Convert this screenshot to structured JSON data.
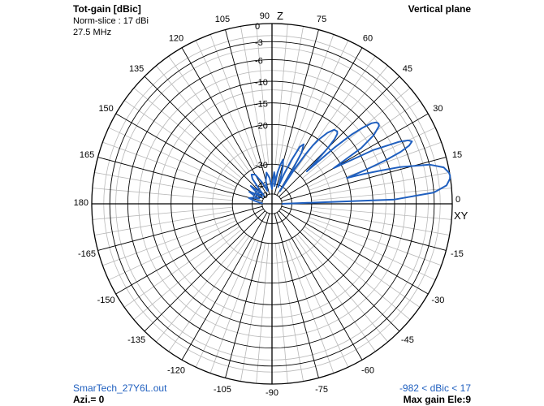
{
  "header": {
    "title": "Tot-gain [dBic]",
    "norm_slice": "Norm-slice : 17 dBi",
    "frequency": "27.5 MHz",
    "plane": "Vertical plane"
  },
  "footer": {
    "file": "SmarTech_27Y6L.out",
    "azimuth": "Azi.= 0",
    "range": "-982 < dBic < 17",
    "max_gain": "Max gain Ele:9"
  },
  "colors": {
    "trace": "#1f5fbf",
    "grid_major": "#000000",
    "grid_minor": "#b8b8b8",
    "background": "#ffffff"
  },
  "chart_data": {
    "type": "polar",
    "title": "Tot-gain [dBic]",
    "axis_z_label": "Z",
    "axis_xy_label": "XY",
    "angle_labels": [
      "0",
      "15",
      "30",
      "45",
      "60",
      "75",
      "90",
      "105",
      "120",
      "135",
      "150",
      "165",
      "180",
      "-165",
      "-150",
      "-135",
      "-120",
      "-105",
      "-90",
      "-75",
      "-60",
      "-45",
      "-30",
      "-15"
    ],
    "angle_values": [
      0,
      15,
      30,
      45,
      60,
      75,
      90,
      105,
      120,
      135,
      150,
      165,
      180,
      -165,
      -150,
      -135,
      -120,
      -105,
      -90,
      -75,
      -60,
      -45,
      -30,
      -15
    ],
    "radial_ticks": [
      "0",
      "-3",
      "-6",
      "-10",
      "-15",
      "-20",
      "-30",
      "-40",
      "-50"
    ],
    "radial_values": [
      0,
      -3,
      -6,
      -10,
      -15,
      -20,
      -30,
      -40,
      -50
    ],
    "rlim": [
      -50,
      0
    ],
    "max_gain_elevation_deg": 9,
    "series": [
      {
        "elevation_deg": [
          0,
          2,
          4,
          6,
          8,
          9,
          10,
          12,
          14,
          16,
          17,
          18,
          19,
          20,
          21,
          22,
          23,
          24,
          25,
          26,
          28,
          30,
          32,
          34,
          36,
          37,
          38,
          39,
          40,
          41,
          42,
          43,
          44,
          45,
          46,
          47,
          48,
          50,
          52,
          54,
          55,
          56,
          57,
          58,
          59,
          60,
          62,
          64,
          66,
          68,
          70,
          72,
          74,
          76,
          78,
          80,
          82,
          84,
          86,
          88,
          90,
          95,
          100,
          105,
          110,
          115,
          120,
          125,
          128,
          131,
          134,
          137,
          140,
          143,
          146,
          149,
          152,
          155,
          158,
          162,
          166,
          170,
          174,
          177,
          180
        ],
        "gain_dBic": [
          -50,
          -10,
          -3,
          -0.8,
          -0.1,
          0,
          -0.1,
          -0.8,
          -3,
          -8,
          -12,
          -16,
          -20,
          -15,
          -10,
          -7,
          -5.2,
          -4.5,
          -5,
          -6.5,
          -12,
          -22,
          -14,
          -10,
          -8.2,
          -8,
          -8.2,
          -9,
          -11,
          -14,
          -19,
          -28,
          -24,
          -20,
          -17.5,
          -16.2,
          -15.8,
          -16,
          -17.5,
          -20,
          -22,
          -25,
          -30,
          -45,
          -30,
          -25,
          -23,
          -24,
          -28,
          -34,
          -42,
          -35,
          -30,
          -28.5,
          -30,
          -34,
          -42,
          -36,
          -34,
          -38,
          -45,
          -37,
          -34,
          -38,
          -46,
          -38,
          -33,
          -32,
          -34,
          -40,
          -48,
          -40,
          -36,
          -40,
          -48,
          -40,
          -37,
          -40,
          -46,
          -40,
          -38,
          -42,
          -47,
          -50,
          -50
        ]
      }
    ]
  }
}
